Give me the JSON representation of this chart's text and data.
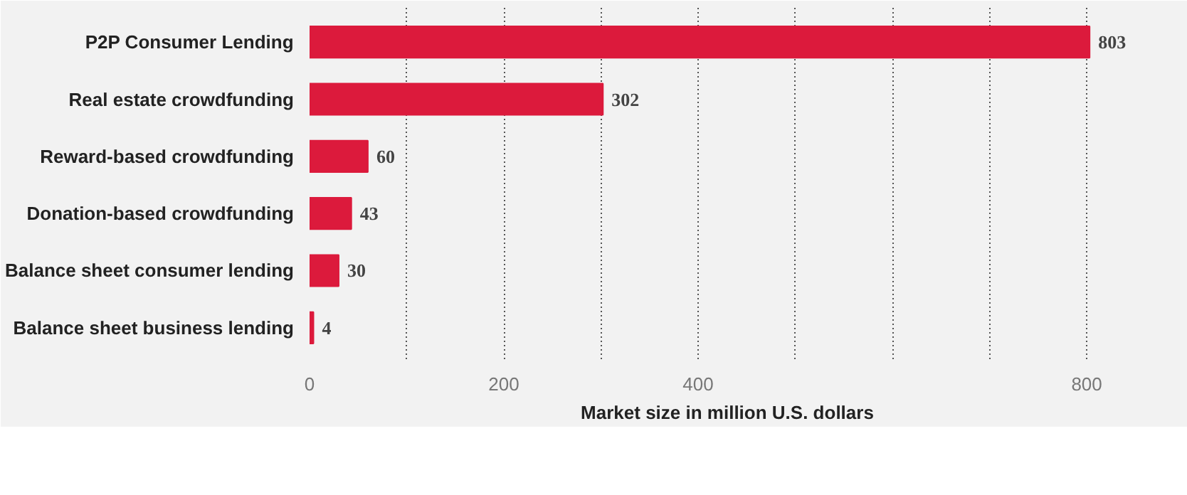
{
  "chart_data": {
    "type": "bar",
    "orientation": "horizontal",
    "xlabel": "Market size in million U.S. dollars",
    "categories": [
      "P2P Consumer Lending",
      "Real estate crowdfunding",
      "Reward-based crowdfunding",
      "Donation-based crowdfunding",
      "Balance sheet consumer lending",
      "Balance sheet business lending"
    ],
    "values": [
      803,
      302,
      60,
      43,
      30,
      4
    ],
    "color": "#dc1a3c",
    "data_labels": true,
    "xlim": [
      0,
      860
    ],
    "xticks": [
      0,
      {
        "value": 100,
        "label": null
      },
      200,
      {
        "value": 300,
        "label": null
      },
      400,
      {
        "value": 500,
        "label": null
      },
      {
        "value": 600,
        "label": null
      },
      {
        "value": 700,
        "label": null
      },
      800
    ],
    "grid": "x"
  }
}
